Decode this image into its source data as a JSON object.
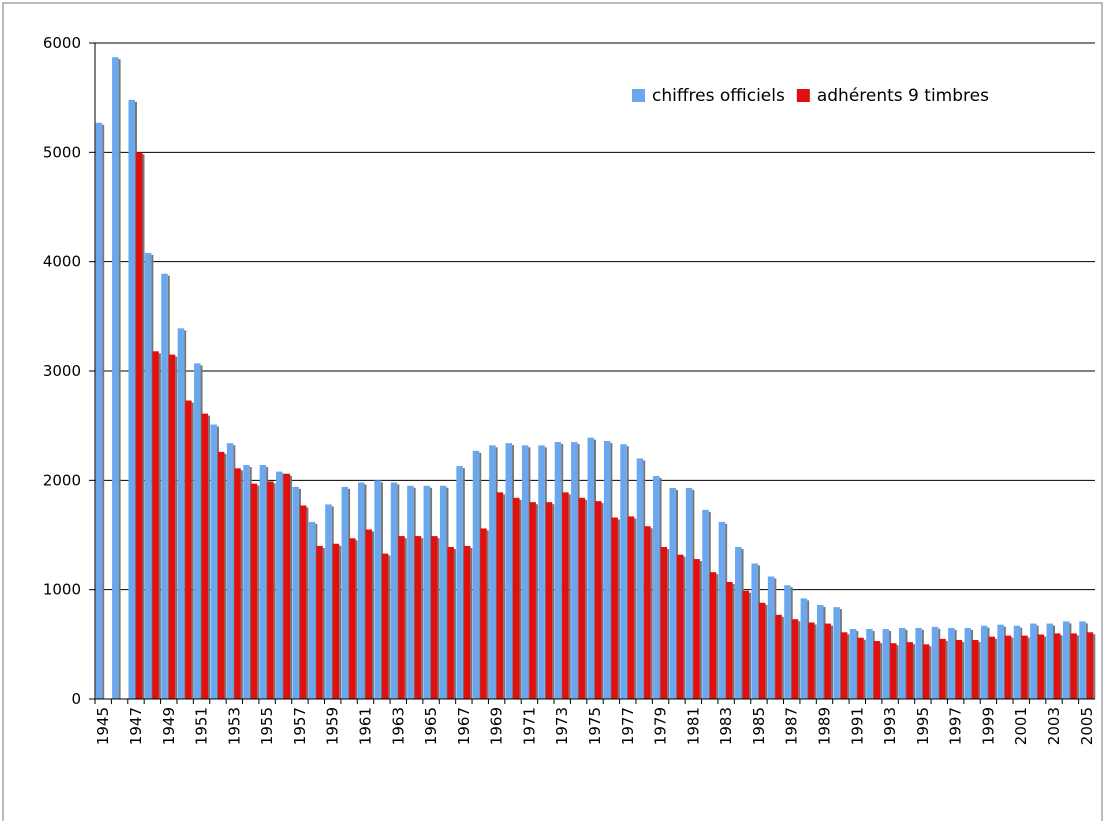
{
  "chart_data": {
    "type": "bar",
    "categories": [
      "1945",
      null,
      "1947",
      null,
      "1949",
      null,
      "1951",
      null,
      "1953",
      null,
      "1955",
      null,
      "1957",
      null,
      "1959",
      null,
      "1961",
      null,
      "1963",
      null,
      "1965",
      null,
      "1967",
      null,
      "1969",
      null,
      "1971",
      null,
      "1973",
      null,
      "1975",
      null,
      "1977",
      null,
      "1979",
      null,
      "1981",
      null,
      "1983",
      null,
      "1985",
      null,
      "1987",
      null,
      "1989",
      null,
      "1991",
      null,
      "1993",
      null,
      "1995",
      null,
      "1997",
      null,
      "1999",
      null,
      "2001",
      null,
      "2003",
      null,
      "2005"
    ],
    "series": [
      {
        "name": "chiffres officiels",
        "color": "#6aa7ee",
        "values": [
          5270,
          5870,
          5480,
          4080,
          3890,
          3390,
          3070,
          2510,
          2340,
          2140,
          2140,
          2080,
          1940,
          1620,
          1780,
          1940,
          1980,
          2000,
          1980,
          1950,
          1950,
          1950,
          2130,
          2270,
          2320,
          2340,
          2320,
          2320,
          2350,
          2350,
          2390,
          2360,
          2330,
          2200,
          2040,
          1930,
          1930,
          1730,
          1620,
          1390,
          1240,
          1120,
          1040,
          920,
          860,
          840,
          640,
          640,
          640,
          650,
          650,
          660,
          650,
          650,
          670,
          680,
          670,
          690,
          690,
          710,
          710
        ]
      },
      {
        "name": "adhérents 9 timbres",
        "color": "#e01010",
        "values": [
          null,
          null,
          5000,
          3180,
          3150,
          2730,
          2610,
          2260,
          2110,
          1970,
          1990,
          2060,
          1770,
          1400,
          1420,
          1470,
          1550,
          1330,
          1490,
          1490,
          1490,
          1390,
          1400,
          1560,
          1890,
          1840,
          1800,
          1800,
          1890,
          1840,
          1810,
          1660,
          1670,
          1580,
          1390,
          1320,
          1280,
          1160,
          1070,
          990,
          880,
          770,
          730,
          700,
          690,
          610,
          560,
          530,
          510,
          520,
          500,
          550,
          540,
          540,
          570,
          580,
          580,
          590,
          600,
          600,
          610
        ]
      }
    ],
    "ylim": [
      0,
      6000
    ],
    "yticks": [
      0,
      1000,
      2000,
      3000,
      4000,
      5000,
      6000
    ],
    "grid": true,
    "legend": "upper right"
  }
}
